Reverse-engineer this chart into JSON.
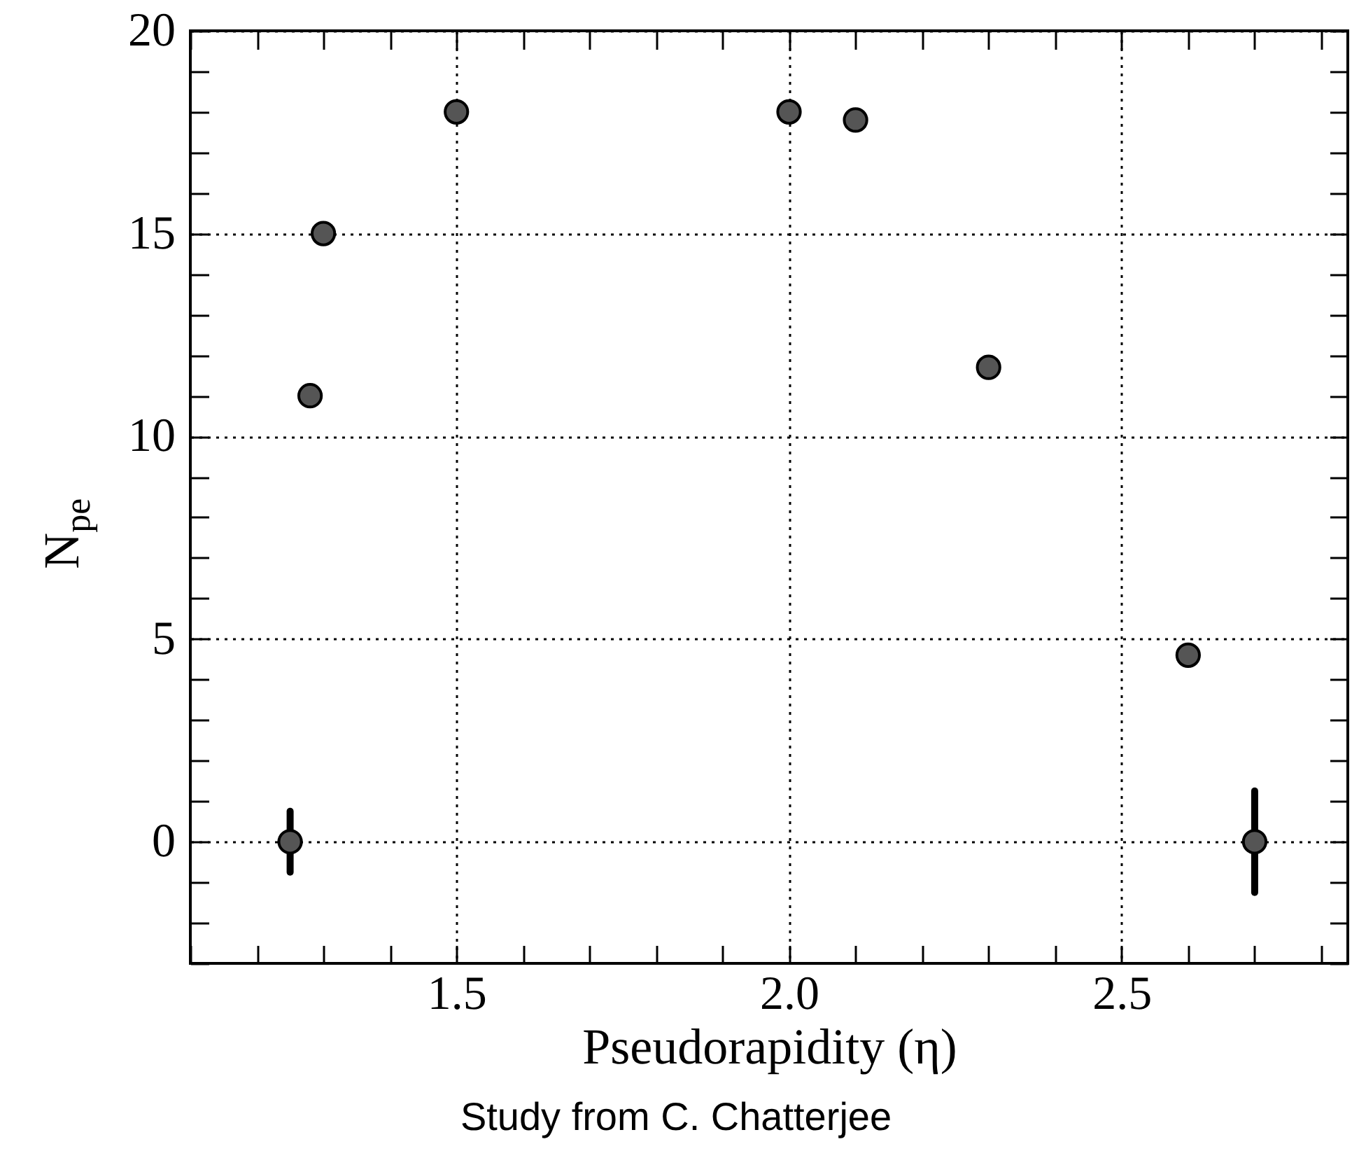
{
  "chart_data": {
    "type": "scatter",
    "xlabel": "Pseudorapidity (η)",
    "ylabel": "N$_{pe}$",
    "annotations": [
      "Study from C. Chatterjee"
    ],
    "x": [
      1.25,
      1.28,
      1.3,
      1.5,
      2.0,
      2.1,
      2.3,
      2.6,
      2.7
    ],
    "series": [
      {
        "color": "#000000",
        "values": [
          0,
          11,
          15,
          18,
          18,
          17.8,
          11.7,
          4.6,
          0
        ],
        "errors": [
          0.75,
          null,
          null,
          null,
          null,
          null,
          null,
          null,
          1.25
        ]
      }
    ],
    "xlim": [
      1.1,
      2.84
    ],
    "xticks": [
      {
        "value": 1.1,
        "label": null
      },
      {
        "value": 1.2,
        "label": null
      },
      {
        "value": 1.3,
        "label": null
      },
      {
        "value": 1.4,
        "label": null
      },
      {
        "value": 1.5,
        "label": "1.5"
      },
      {
        "value": 1.6,
        "label": null
      },
      {
        "value": 1.7,
        "label": null
      },
      {
        "value": 1.8,
        "label": null
      },
      {
        "value": 1.9,
        "label": null
      },
      {
        "value": 2.0,
        "label": "2.0"
      },
      {
        "value": 2.1,
        "label": null
      },
      {
        "value": 2.2,
        "label": null
      },
      {
        "value": 2.3,
        "label": null
      },
      {
        "value": 2.4,
        "label": null
      },
      {
        "value": 2.5,
        "label": "2.5"
      },
      {
        "value": 2.6,
        "label": null
      },
      {
        "value": 2.7,
        "label": null
      },
      {
        "value": 2.8,
        "label": null
      }
    ],
    "ylim": [
      -3,
      20
    ],
    "yticks": [
      {
        "value": -3,
        "label": null
      },
      {
        "value": -2,
        "label": null
      },
      {
        "value": -1,
        "label": null
      },
      0,
      {
        "value": 1,
        "label": null
      },
      {
        "value": 2,
        "label": null
      },
      {
        "value": 3,
        "label": null
      },
      {
        "value": 4,
        "label": null
      },
      5,
      {
        "value": 6,
        "label": null
      },
      {
        "value": 7,
        "label": null
      },
      {
        "value": 8,
        "label": null
      },
      {
        "value": 9,
        "label": null
      },
      10,
      {
        "value": 11,
        "label": null
      },
      {
        "value": 12,
        "label": null
      },
      {
        "value": 13,
        "label": null
      },
      {
        "value": 14,
        "label": null
      },
      15,
      {
        "value": 16,
        "label": null
      },
      {
        "value": 17,
        "label": null
      },
      {
        "value": 18,
        "label": null
      },
      {
        "value": 19,
        "label": null
      },
      20
    ],
    "grid": true,
    "marker": "circle"
  }
}
